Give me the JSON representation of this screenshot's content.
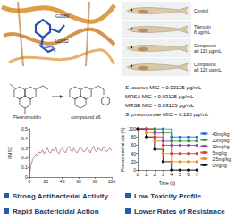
{
  "docking": {
    "residues": [
      "G2089",
      "U2652"
    ]
  },
  "zebrafish": {
    "groups": [
      {
        "lines": [
          "Control"
        ]
      },
      {
        "lines": [
          "Tiamulin",
          "8 μg/mL"
        ]
      },
      {
        "lines": [
          "Compound",
          "a6 120 μg/mL"
        ]
      },
      {
        "lines": [
          "Compound",
          "a6 120 μg/mL"
        ]
      }
    ]
  },
  "structures": {
    "labels": [
      "Pleuromutilin",
      "compound a6"
    ]
  },
  "mic": [
    {
      "organism": "S. aureus",
      "text": "MIC < 0.03125 μg/mL"
    },
    {
      "organism": "MRSA",
      "text": "MIC < 0.03125 μg/mL"
    },
    {
      "organism": "MRSE",
      "text": "MIC < 0.03125 μg/mL"
    },
    {
      "organism": "S. pneumoniae",
      "text": "MIC = 0.125 μg/mL"
    }
  ],
  "chart_data": [
    {
      "type": "line",
      "y_label": "RMSD",
      "color": "#9b3b6b",
      "grid": false,
      "x": [
        0,
        2,
        4,
        6,
        8,
        10,
        12,
        14,
        16,
        18,
        20,
        22,
        24,
        26,
        28,
        30,
        32,
        34,
        36,
        38,
        40,
        42,
        44,
        46,
        48,
        50,
        52,
        54,
        56,
        58,
        60,
        62,
        64,
        66,
        68,
        70,
        72,
        74,
        76,
        78,
        80,
        82,
        84,
        86,
        88,
        90,
        92,
        94,
        96,
        98,
        100
      ],
      "values": [
        0,
        0.12,
        0.18,
        0.21,
        0.24,
        0.22,
        0.26,
        0.25,
        0.28,
        0.24,
        0.27,
        0.3,
        0.26,
        0.25,
        0.29,
        0.27,
        0.31,
        0.26,
        0.24,
        0.28,
        0.3,
        0.27,
        0.25,
        0.29,
        0.32,
        0.28,
        0.26,
        0.3,
        0.27,
        0.25,
        0.28,
        0.31,
        0.29,
        0.26,
        0.27,
        0.3,
        0.28,
        0.25,
        0.29,
        0.32,
        0.27,
        0.26,
        0.3,
        0.28,
        0.27,
        0.31,
        0.29,
        0.26,
        0.28,
        0.3,
        0.27
      ],
      "xlim": [
        0,
        100
      ],
      "xticks": [
        0,
        20,
        40,
        60,
        80,
        100
      ],
      "ylim": [
        0,
        0.5
      ],
      "yticks": [
        0,
        0.1,
        0.2,
        0.3,
        0.4,
        0.5
      ]
    },
    {
      "type": "line",
      "x_label": "Time (d)",
      "y_label": "Percent survival rate (%)",
      "line_style": "step",
      "marker": "circle",
      "legend": "right",
      "grid": false,
      "x": [
        0,
        1,
        2,
        3,
        4,
        5,
        6,
        7
      ],
      "series": [
        {
          "name": "40mg/kg",
          "color": "#2f6fd6",
          "values": [
            100,
            100,
            100,
            100,
            80,
            80,
            80,
            80
          ]
        },
        {
          "name": "20mg/kg",
          "color": "#2e9e3e",
          "values": [
            100,
            100,
            100,
            90,
            70,
            70,
            70,
            70
          ]
        },
        {
          "name": "10mg/kg",
          "color": "#8e44ad",
          "values": [
            100,
            100,
            90,
            70,
            60,
            60,
            60,
            60
          ]
        },
        {
          "name": "5mg/kg",
          "color": "#e03a3a",
          "values": [
            100,
            100,
            80,
            60,
            40,
            40,
            40,
            40
          ]
        },
        {
          "name": "2.5mg/kg",
          "color": "#f08c1e",
          "values": [
            100,
            90,
            70,
            40,
            20,
            20,
            20,
            20
          ]
        },
        {
          "name": "0mg/kg",
          "color": "#111111",
          "values": [
            100,
            80,
            50,
            20,
            0,
            0,
            0,
            0
          ]
        }
      ],
      "xlim": [
        0,
        7
      ],
      "xticks": [
        0,
        1,
        2,
        3,
        4,
        5,
        6,
        7
      ],
      "ylim": [
        0,
        100
      ],
      "yticks": [
        0,
        20,
        40,
        60,
        80,
        100
      ]
    }
  ],
  "highlights": [
    "Strong Antibacterial Activity",
    "Rapid Bactericidal Action",
    "Low Toxicity Profile",
    "Lower Rates of Resistance"
  ]
}
